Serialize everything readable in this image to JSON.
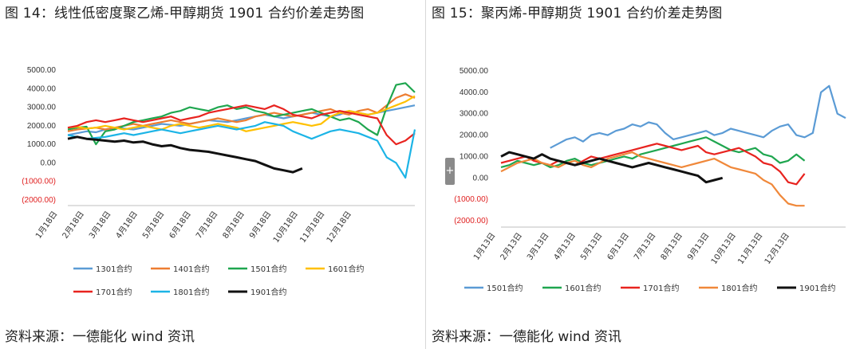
{
  "charts": [
    {
      "title": "图 14：线性低密度聚乙烯-甲醇期货 1901 合约价差走势图",
      "source": "资料来源：一德能化  wind 资讯",
      "chart_data": {
        "type": "line",
        "y_ticks": [
          "5000.00",
          "4000.00",
          "3000.00",
          "2000.00",
          "1000.00",
          "0.00",
          "(1000.00)",
          "(2000.00)"
        ],
        "y_tick_values": [
          5000,
          4000,
          3000,
          2000,
          1000,
          0,
          -1000,
          -2000
        ],
        "x_ticks": [
          "1月18日",
          "2月18日",
          "3月18日",
          "4月18日",
          "5月18日",
          "6月18日",
          "7月18日",
          "8月18日",
          "9月18日",
          "10月18日",
          "11月18日",
          "12月18日"
        ],
        "ylim": [
          -2000,
          5000
        ],
        "grid": false,
        "legend_position": "bottom",
        "series": [
          {
            "name": "1301合约",
            "color": "#5b9bd5",
            "values": [
              1500,
              1600,
              1700,
              1650,
              1800,
              1900,
              1850,
              1800,
              1900,
              2000,
              2100,
              2050,
              2000,
              2100,
              2200,
              2300,
              2250,
              2200,
              2300,
              2400,
              2500,
              2600,
              2500,
              2400,
              2500,
              2600,
              2700,
              2600,
              2500,
              2600,
              2800,
              2700,
              2600,
              2700,
              2800,
              2900,
              3000,
              3100
            ]
          },
          {
            "name": "1401合约",
            "color": "#ed7d31",
            "values": [
              1700,
              1800,
              1850,
              1900,
              1800,
              1900,
              2000,
              2100,
              2000,
              2100,
              2200,
              2300,
              2200,
              2100,
              2200,
              2300,
              2400,
              2300,
              2200,
              2300,
              2500,
              2600,
              2700,
              2600,
              2500,
              2600,
              2700,
              2800,
              2900,
              2700,
              2600,
              2800,
              2900,
              2700,
              3100,
              3500,
              3700,
              3500
            ]
          },
          {
            "name": "1501合约",
            "color": "#1fa64f",
            "values": [
              1800,
              1900,
              1950,
              1000,
              1700,
              1800,
              2000,
              2200,
              2300,
              2400,
              2500,
              2700,
              2800,
              3000,
              2900,
              2800,
              3000,
              3100,
              2900,
              3000,
              2800,
              2700,
              2500,
              2600,
              2700,
              2800,
              2900,
              2700,
              2500,
              2300,
              2400,
              2200,
              1800,
              1500,
              3000,
              4200,
              4300,
              3800
            ]
          },
          {
            "name": "1601合约",
            "color": "#ffc000",
            "values": [
              1900,
              1950,
              1850,
              1900,
              2000,
              1900,
              1800,
              1900,
              2000,
              1900,
              1800,
              2000,
              2100,
              2000,
              1900,
              2000,
              2100,
              2000,
              1900,
              1700,
              1800,
              1900,
              2000,
              2100,
              2200,
              2100,
              2000,
              2100,
              2500,
              2700,
              2800,
              2700,
              2600,
              2700,
              2900,
              3100,
              3300,
              3600
            ]
          },
          {
            "name": "1701合约",
            "color": "#e8231f",
            "values": [
              1900,
              2000,
              2200,
              2300,
              2200,
              2300,
              2400,
              2300,
              2200,
              2300,
              2400,
              2500,
              2300,
              2400,
              2500,
              2700,
              2800,
              2900,
              3000,
              3100,
              3000,
              2900,
              3100,
              2900,
              2600,
              2500,
              2400,
              2600,
              2700,
              2800,
              2700,
              2600,
              2500,
              2400,
              1500,
              1000,
              1200,
              1600
            ]
          },
          {
            "name": "1801合约",
            "color": "#1cb4e6",
            "values": [
              1500,
              1400,
              1300,
              1350,
              1400,
              1500,
              1600,
              1500,
              1600,
              1700,
              1800,
              1700,
              1600,
              1700,
              1800,
              1900,
              2000,
              1900,
              1800,
              1900,
              2000,
              2200,
              2100,
              2000,
              1700,
              1500,
              1300,
              1500,
              1700,
              1800,
              1700,
              1600,
              1400,
              1200,
              300,
              0,
              -800,
              1800
            ]
          },
          {
            "name": "1901合约",
            "color": "#111111",
            "values": [
              1300,
              1400,
              1300,
              1250,
              1200,
              1150,
              1200,
              1100,
              1150,
              1000,
              900,
              950,
              800,
              700,
              650,
              600,
              500,
              400,
              300,
              200,
              100,
              -100,
              -300,
              -400,
              -500,
              -300
            ]
          }
        ]
      }
    },
    {
      "title": "图 15：聚丙烯-甲醇期货 1901 合约价差走势图",
      "source": "资料来源：一德能化  wind 资讯",
      "chart_data": {
        "type": "line",
        "y_ticks": [
          "5000.00",
          "4000.00",
          "3000.00",
          "2000.00",
          "1000.00",
          "0.00",
          "(1000.00)",
          "(2000.00)"
        ],
        "y_tick_values": [
          5000,
          4000,
          3000,
          2000,
          1000,
          0,
          -1000,
          -2000
        ],
        "x_ticks": [
          "1月13日",
          "2月13日",
          "3月13日",
          "4月13日",
          "5月13日",
          "6月13日",
          "7月13日",
          "8月13日",
          "9月13日",
          "10月13日",
          "11月13日",
          "12月13日"
        ],
        "ylim": [
          -2000,
          5000
        ],
        "grid": false,
        "legend_position": "bottom",
        "series": [
          {
            "name": "1501合约",
            "color": "#5b9bd5",
            "start_index": 6,
            "values": [
              1400,
              1600,
              1800,
              1900,
              1700,
              2000,
              2100,
              2000,
              2200,
              2300,
              2500,
              2400,
              2600,
              2500,
              2100,
              1800,
              1900,
              2000,
              2100,
              2200,
              2000,
              2100,
              2300,
              2200,
              2100,
              2000,
              1900,
              2200,
              2400,
              2500,
              2000,
              1900,
              2100,
              4000,
              4300,
              3000,
              2800
            ]
          },
          {
            "name": "1601合约",
            "color": "#1fa64f",
            "values": [
              500,
              600,
              800,
              700,
              600,
              700,
              500,
              600,
              800,
              900,
              700,
              600,
              700,
              800,
              900,
              1000,
              900,
              1100,
              1200,
              1300,
              1400,
              1500,
              1600,
              1700,
              1800,
              1900,
              1700,
              1500,
              1300,
              1200,
              1300,
              1400,
              1100,
              1000,
              700,
              800,
              1100,
              800
            ]
          },
          {
            "name": "1701合约",
            "color": "#e8231f",
            "values": [
              700,
              800,
              900,
              1000,
              800,
              700,
              600,
              800,
              700,
              600,
              800,
              1000,
              900,
              1000,
              1100,
              1200,
              1300,
              1400,
              1500,
              1600,
              1500,
              1400,
              1300,
              1400,
              1500,
              1200,
              1100,
              1200,
              1300,
              1400,
              1200,
              1000,
              700,
              600,
              300,
              -200,
              -300,
              200
            ]
          },
          {
            "name": "1801合约",
            "color": "#f0883a",
            "values": [
              300,
              500,
              700,
              800,
              900,
              700,
              600,
              500,
              700,
              800,
              600,
              500,
              700,
              900,
              1000,
              1100,
              1200,
              1000,
              900,
              800,
              700,
              600,
              500,
              600,
              700,
              800,
              900,
              700,
              500,
              400,
              300,
              200,
              -100,
              -300,
              -800,
              -1200,
              -1300,
              -1300
            ]
          },
          {
            "name": "1901合约",
            "color": "#111111",
            "values": [
              1000,
              1200,
              1100,
              1000,
              900,
              1100,
              900,
              800,
              700,
              600,
              700,
              800,
              900,
              800,
              700,
              600,
              500,
              600,
              700,
              600,
              500,
              400,
              300,
              200,
              100,
              -200,
              -100,
              0
            ]
          }
        ]
      }
    }
  ],
  "ui": {
    "side_handle_glyph": "+"
  }
}
